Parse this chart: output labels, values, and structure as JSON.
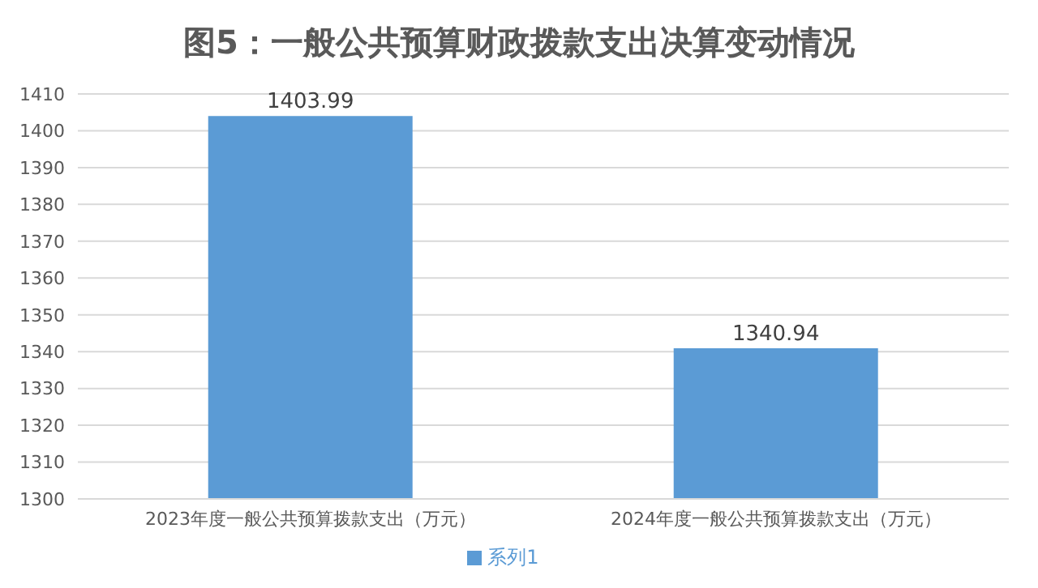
{
  "chart_data": {
    "type": "bar",
    "title": "图5：一般公共预算财政拨款支出决算变动情况",
    "categories": [
      "2023年度一般公共预算拨款支出（万元）",
      "2024年度一般公共预算拨款支出（万元）"
    ],
    "series": [
      {
        "name": "系列1",
        "color": "#5b9bd5",
        "values": [
          1403.99,
          1340.94
        ]
      }
    ],
    "ylim": [
      1300,
      1410
    ],
    "yticks": [
      1300,
      1310,
      1320,
      1330,
      1340,
      1350,
      1360,
      1370,
      1380,
      1390,
      1400,
      1410
    ],
    "grid": "y",
    "legend": "bottom",
    "data_labels": true
  }
}
